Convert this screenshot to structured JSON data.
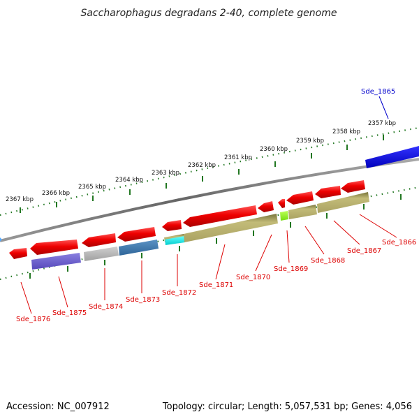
{
  "title": "Saccharophagus degradans 2-40, complete genome",
  "footer": {
    "accession": "Accession: NC_007912",
    "topology": "Topology: circular; Length: 5,057,531 bp; Genes: 4,056"
  },
  "kbp_ticks": [
    "2367 kbp",
    "2366 kbp",
    "2365 kbp",
    "2364 kbp",
    "2363 kbp",
    "2362 kbp",
    "2361 kbp",
    "2360 kbp",
    "2359 kbp",
    "2358 kbp",
    "2357 kbp"
  ],
  "genes": [
    {
      "label": "Sde_1865",
      "color": "#0000cc"
    },
    {
      "label": "Sde_1866",
      "color": "#cc0000"
    },
    {
      "label": "Sde_1867",
      "color": "#cc0000"
    },
    {
      "label": "Sde_1868",
      "color": "#cc0000"
    },
    {
      "label": "Sde_1869",
      "color": "#cc0000"
    },
    {
      "label": "Sde_1870",
      "color": "#cc0000"
    },
    {
      "label": "Sde_1871",
      "color": "#cc0000"
    },
    {
      "label": "Sde_1872",
      "color": "#cc0000"
    },
    {
      "label": "Sde_1873",
      "color": "#cc0000"
    },
    {
      "label": "Sde_1874",
      "color": "#cc0000"
    },
    {
      "label": "Sde_1875",
      "color": "#cc0000"
    },
    {
      "label": "Sde_1876",
      "color": "#cc0000"
    }
  ],
  "colors": {
    "cds_forward_strand": "#0000ee",
    "cds_reverse_strand": "#ee0000",
    "backbone": "#888888",
    "tick": "#227722",
    "category_olive": "#b5ad6a",
    "category_purple": "#6a5fcc",
    "category_grey": "#b8b8b8",
    "category_steel": "#3f78aa",
    "category_cyan": "#00e5e5",
    "category_lime": "#88ee22"
  }
}
